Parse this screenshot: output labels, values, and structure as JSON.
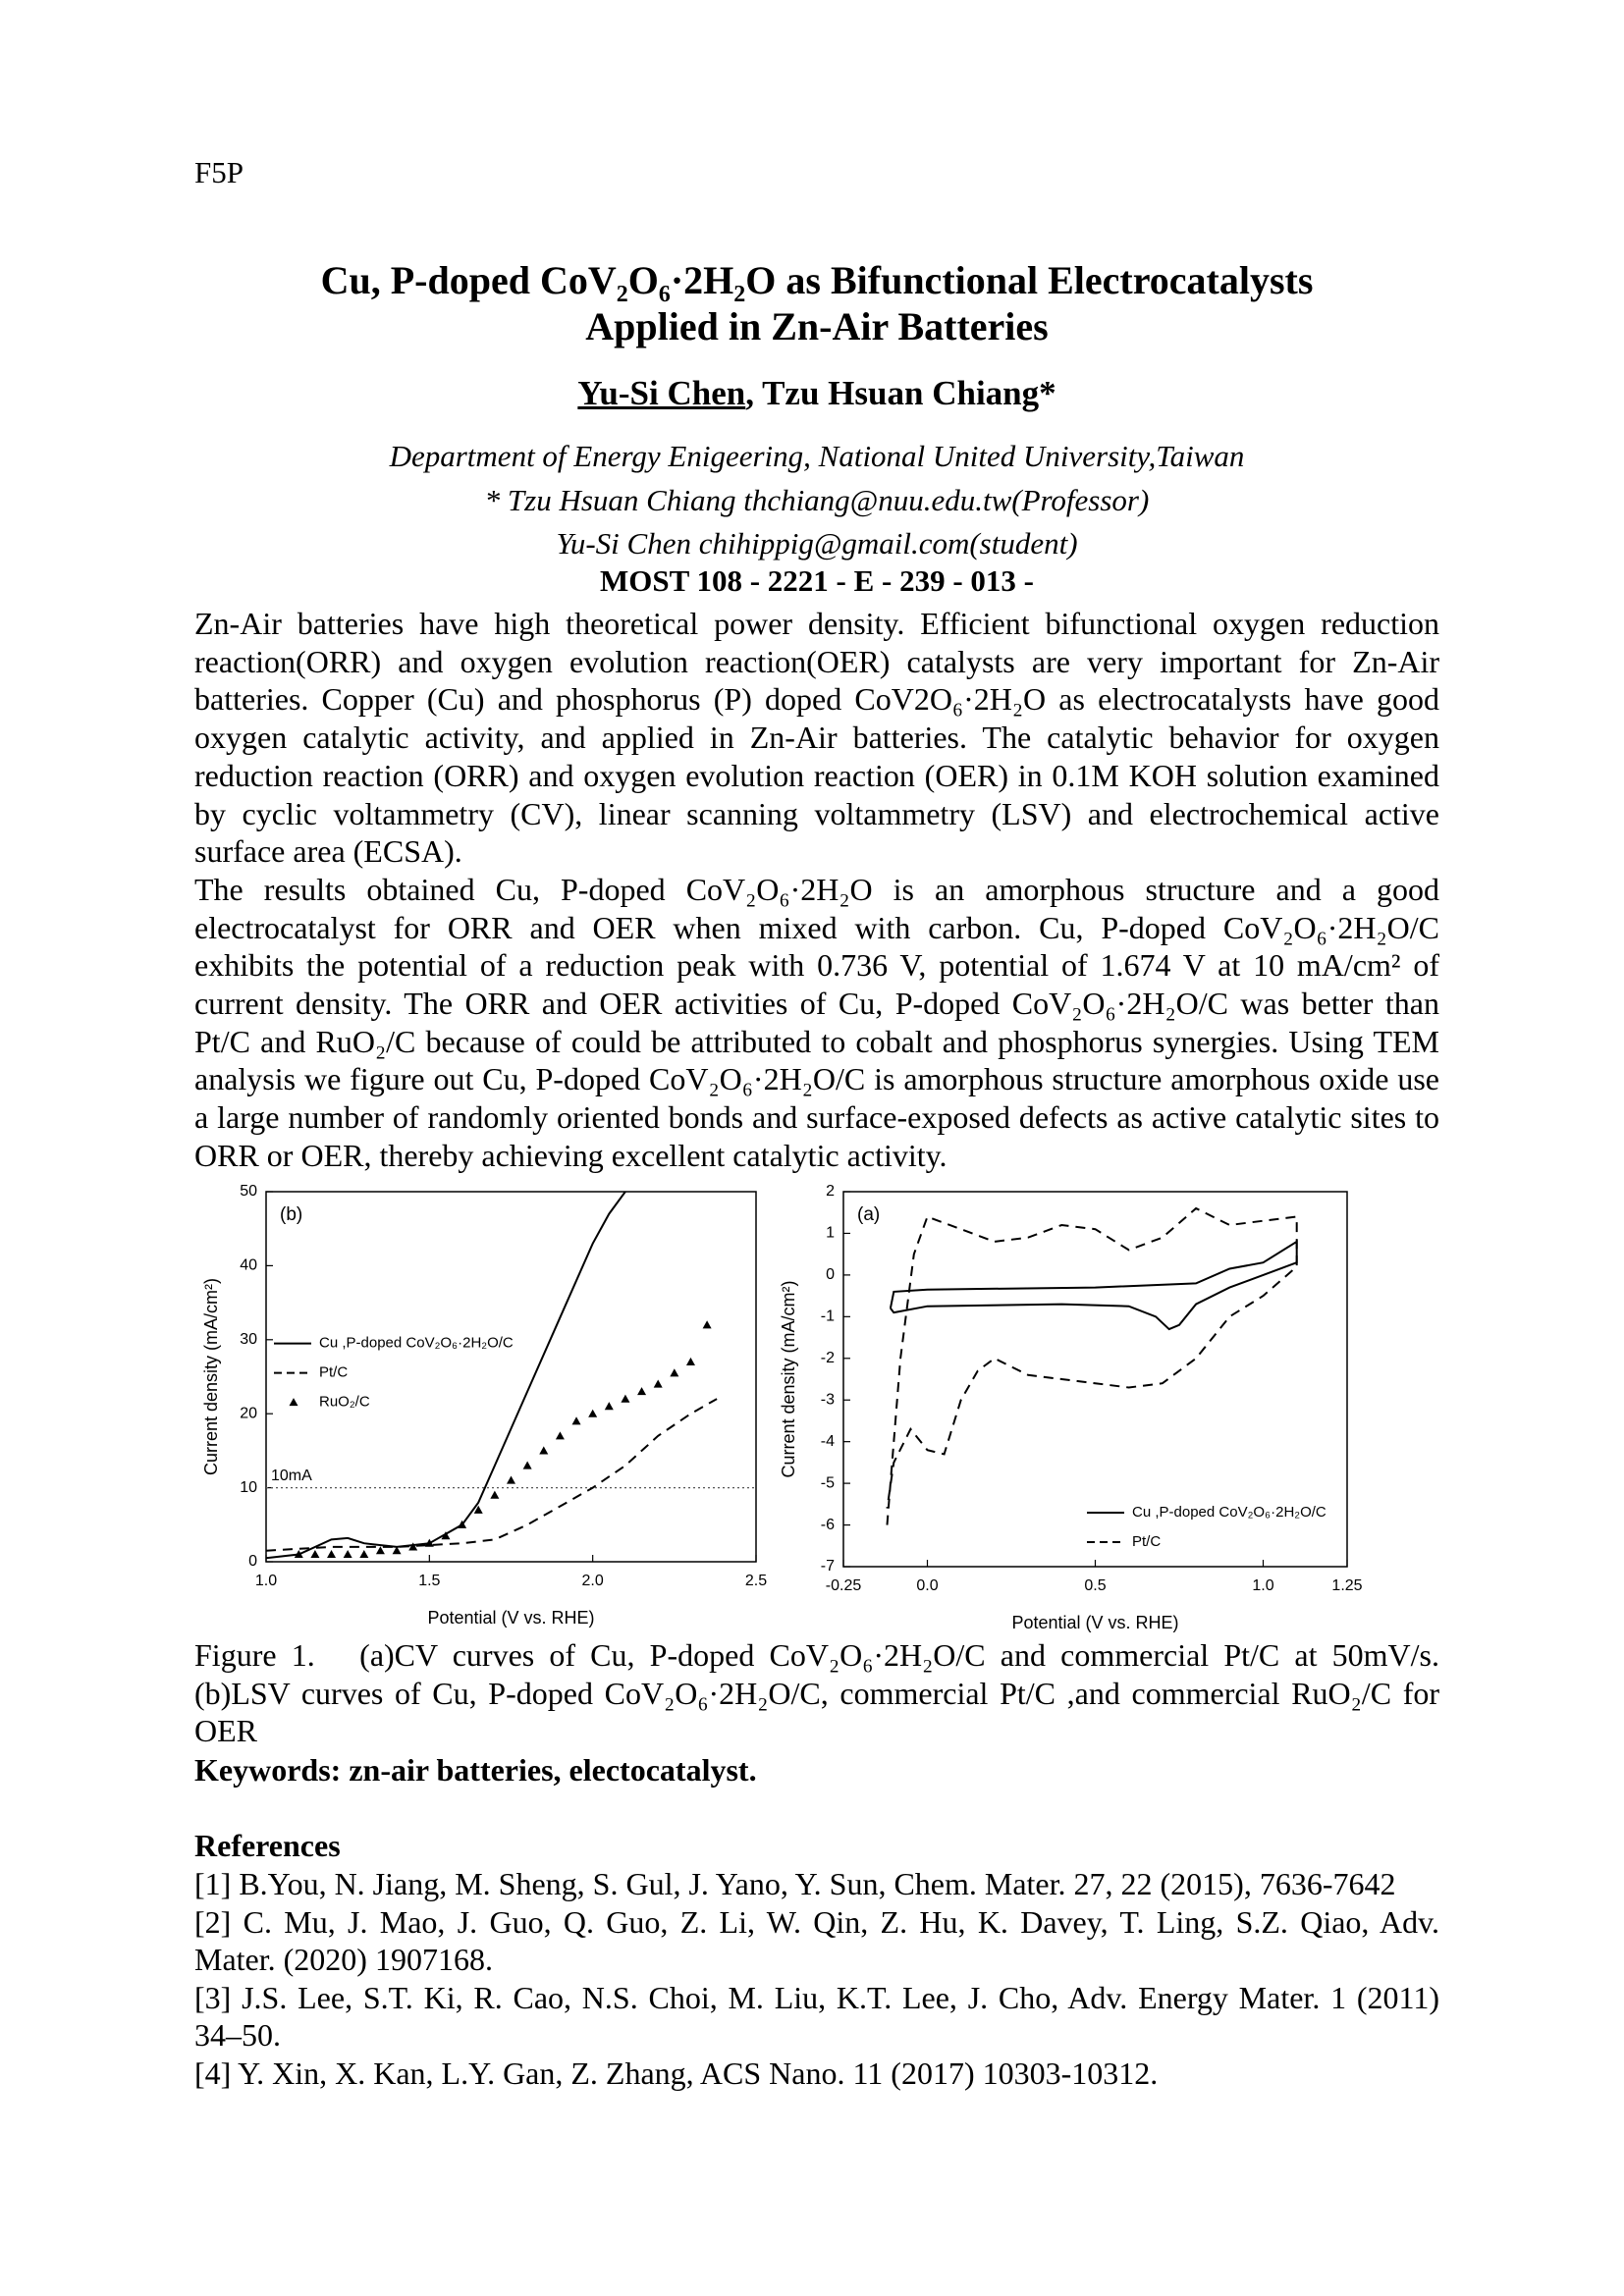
{
  "header": {
    "code": "F5P"
  },
  "title": {
    "lines": [
      "Cu, P-doped CoV₂O₆·2H₂O as Bifunctional Electrocatalysts",
      "Applied in Zn-Air Batteries"
    ]
  },
  "authors": [
    "Yu-Si Chen",
    ", Tzu Hsuan Chiang*"
  ],
  "affiliations": [
    "Department of Energy Enigeering, National United University,Taiwan",
    "* Tzu Hsuan Chiang thchiang@nuu.edu.tw(Professor)",
    "Yu-Si Chen chihippig@gmail.com(student)"
  ],
  "grant": "MOST 108 - 2221 - E - 239 - 013 -",
  "abstract": [
    "Zn-Air batteries have high theoretical power density. Efficient bifunctional oxygen reduction reaction(ORR) and oxygen evolution reaction(OER) catalysts are very important for Zn-Air batteries. Copper (Cu) and phosphorus (P) doped CoV2O₆·2H₂O as electrocatalysts have good oxygen catalytic activity, and applied in Zn-Air batteries. The catalytic behavior for oxygen reduction reaction (ORR) and oxygen evolution reaction (OER) in 0.1M KOH solution examined by cyclic voltammetry (CV), linear scanning voltammetry (LSV) and electrochemical active surface area (ECSA).",
    "The results obtained Cu, P-doped CoV₂O₆·2H₂O is an amorphous structure and a good electrocatalyst for ORR and OER when mixed with carbon. Cu, P-doped CoV₂O₆·2H₂O/C exhibits the potential of a reduction peak with 0.736 V, potential of 1.674 V at 10 mA/cm² of current density. The ORR and OER activities of Cu, P-doped CoV₂O₆·2H₂O/C was better than Pt/C and RuO₂/C because of could be attributed to cobalt and phosphorus synergies. Using TEM analysis we figure out Cu, P-doped CoV₂O₆·2H₂O/C is amorphous structure amorphous oxide use a large number of randomly oriented bonds and surface-exposed defects as active catalytic sites to ORR or OER, thereby achieving excellent catalytic activity."
  ],
  "chart_data": [
    {
      "type": "line",
      "panel_label": "(b)",
      "xlabel": "Potential (V vs. RHE)",
      "ylabel": "Current density (mA/cm²)",
      "xlim": [
        1,
        2.5
      ],
      "xticks": [
        {
          "value": 1,
          "label": "1.0"
        },
        1.5,
        {
          "value": 2,
          "label": "2.0"
        },
        2.5
      ],
      "ylim": [
        0,
        50
      ],
      "yticks": [
        0,
        10,
        20,
        30,
        40,
        50
      ],
      "legend": "center left",
      "reference_line": {
        "label": "10mA",
        "value": 10
      },
      "series": [
        {
          "name": "Cu ,P-doped  CoV₂O₆·2H₂O/C",
          "color": "#000000",
          "style": "solid",
          "x": [
            1.0,
            1.1,
            1.2,
            1.25,
            1.3,
            1.4,
            1.5,
            1.6,
            1.65,
            1.7,
            1.8,
            1.9,
            2.0,
            2.05,
            2.1
          ],
          "values": [
            0.5,
            1,
            3,
            3.2,
            2.5,
            2,
            2.5,
            5,
            8,
            13,
            23,
            33,
            43,
            47,
            50
          ]
        },
        {
          "name": "Pt/C",
          "color": "#000000",
          "style": "dashed",
          "x": [
            1.0,
            1.2,
            1.4,
            1.6,
            1.7,
            1.8,
            1.9,
            2.0,
            2.1,
            2.2,
            2.3,
            2.38
          ],
          "values": [
            1.5,
            2,
            2,
            2.5,
            3,
            5,
            7.5,
            10,
            13,
            17,
            20,
            22
          ]
        },
        {
          "name": "RuO₂/C",
          "color": "#000000",
          "style": "triangle",
          "x": [
            1.1,
            1.15,
            1.2,
            1.25,
            1.3,
            1.35,
            1.4,
            1.45,
            1.5,
            1.55,
            1.6,
            1.65,
            1.7,
            1.75,
            1.8,
            1.85,
            1.9,
            1.95,
            2.0,
            2.05,
            2.1,
            2.15,
            2.2,
            2.25,
            2.3,
            2.35
          ],
          "values": [
            1,
            1,
            1,
            1,
            1,
            1.5,
            1.5,
            2,
            2.5,
            3.5,
            5,
            7,
            9,
            11,
            13,
            15,
            17,
            19,
            20,
            21,
            22,
            23,
            24,
            25.5,
            27,
            32
          ]
        }
      ]
    },
    {
      "type": "line",
      "panel_label": "(a)",
      "xlabel": "Potential (V vs. RHE)",
      "ylabel": "Current density (mA/cm²)",
      "xlim": [
        -0.25,
        1.25
      ],
      "xticks": [
        -0.25,
        {
          "value": 0,
          "label": "0.0"
        },
        0.5,
        {
          "value": 1,
          "label": "1.0"
        },
        1.25
      ],
      "ylim": [
        -7,
        2
      ],
      "yticks": [
        -7,
        -6,
        -5,
        -4,
        -3,
        -2,
        -1,
        0,
        1,
        2
      ],
      "legend": "lower right",
      "series": [
        {
          "name": "Cu ,P-doped  CoV₂O₆·2H₂O/C",
          "color": "#000000",
          "style": "solid",
          "x": [
            -0.11,
            -0.1,
            0,
            0.5,
            0.8,
            0.9,
            1.0,
            1.1,
            1.1,
            1.0,
            0.9,
            0.8,
            0.75,
            0.72,
            0.68,
            0.6,
            0.4,
            0,
            -0.1,
            -0.11
          ],
          "values": [
            -0.8,
            -0.4,
            -0.35,
            -0.3,
            -0.2,
            0.15,
            0.3,
            0.8,
            0.3,
            0,
            -0.3,
            -0.7,
            -1.2,
            -1.3,
            -1.0,
            -0.75,
            -0.7,
            -0.75,
            -0.9,
            -0.8
          ]
        },
        {
          "name": "Pt/C",
          "color": "#000000",
          "style": "dashed",
          "x": [
            -0.12,
            -0.08,
            -0.04,
            0.0,
            0.1,
            0.2,
            0.3,
            0.4,
            0.5,
            0.6,
            0.7,
            0.8,
            0.85,
            0.9,
            1.0,
            1.1,
            1.1,
            1.0,
            0.9,
            0.8,
            0.7,
            0.6,
            0.5,
            0.4,
            0.3,
            0.2,
            0.15,
            0.1,
            0.05,
            0.0,
            -0.05,
            -0.1,
            -0.12
          ],
          "values": [
            -6,
            -2,
            0.5,
            1.4,
            1.1,
            0.8,
            0.9,
            1.2,
            1.1,
            0.6,
            0.9,
            1.6,
            1.4,
            1.2,
            1.3,
            1.4,
            0.2,
            -0.5,
            -1.0,
            -2.0,
            -2.6,
            -2.7,
            -2.6,
            -2.5,
            -2.4,
            -2.0,
            -2.3,
            -3.0,
            -4.3,
            -4.2,
            -3.7,
            -4.5,
            -5.6
          ]
        }
      ]
    }
  ],
  "caption": "Figure 1.   (a)CV curves of Cu, P-doped CoV₂O₆·2H₂O/C and commercial Pt/C at 50mV/s. (b)LSV curves of Cu, P-doped CoV₂O₆·2H₂O/C, commercial Pt/C ,and commercial RuO₂/C for OER",
  "keywords": "Keywords: zn-air batteries, electocatalyst.",
  "references": {
    "heading": "References",
    "items": [
      "[1] B.You, N. Jiang, M. Sheng, S. Gul, J. Yano, Y. Sun, Chem. Mater. 27, 22 (2015), 7636-7642",
      "[2] C. Mu, J. Mao, J. Guo, Q. Guo, Z. Li, W. Qin, Z. Hu, K. Davey, T. Ling, S.Z. Qiao, Adv. Mater. (2020) 1907168.",
      "[3] J.S. Lee, S.T. Ki, R. Cao, N.S. Choi, M. Liu, K.T. Lee, J. Cho, Adv. Energy Mater. 1 (2011) 34–50.",
      "[4] Y. Xin, X. Kan, L.Y. Gan, Z. Zhang, ACS Nano. 11 (2017) 10303-10312."
    ]
  }
}
